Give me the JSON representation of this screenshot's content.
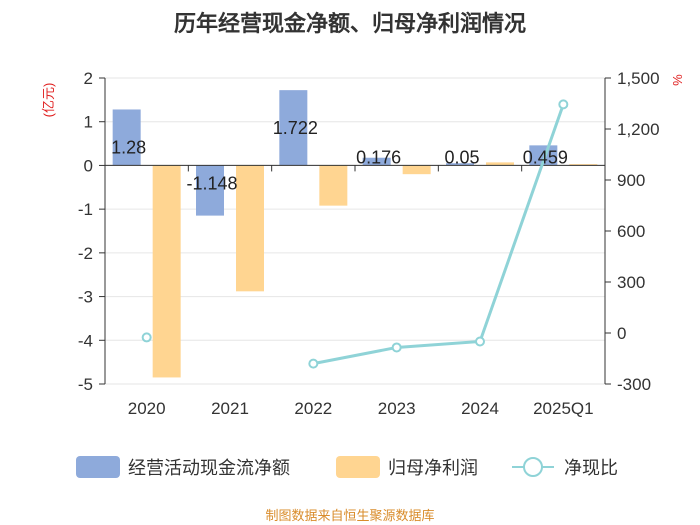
{
  "title": "历年经营现金净额、归母净利润情况",
  "source": "制图数据来自恒生聚源数据库",
  "colors": {
    "series1": "#8eaadb",
    "series2": "#ffd591",
    "line": "#8fd3d7",
    "axis": "#333333",
    "unit": "#e02020"
  },
  "chart_data": {
    "type": "bar",
    "categories": [
      "2020",
      "2021",
      "2022",
      "2023",
      "2024",
      "2025Q1"
    ],
    "left_axis": {
      "unit": "(亿元)",
      "ylim": [
        -5,
        2
      ],
      "ticks": [
        "2",
        "1",
        "0",
        "-1",
        "-2",
        "-3",
        "-4",
        "-5"
      ]
    },
    "right_axis": {
      "unit": "%",
      "ylim": [
        -300,
        1500
      ],
      "ticks": [
        "1,500",
        "1,200",
        "900",
        "600",
        "300",
        "0",
        "-300"
      ]
    },
    "series": [
      {
        "name": "经营活动现金流净额",
        "type": "bar",
        "axis": "left",
        "values": [
          1.28,
          -1.148,
          1.722,
          0.176,
          0.05,
          0.459
        ],
        "labels": [
          "1.28",
          "-1.148",
          "1.722",
          "0.176",
          "0.05",
          "0.459"
        ]
      },
      {
        "name": "归母净利润",
        "type": "bar",
        "axis": "left",
        "values": [
          -4.85,
          -2.88,
          -0.92,
          -0.2,
          0.07,
          0.03
        ]
      },
      {
        "name": "净现比",
        "type": "line",
        "axis": "right",
        "values": [
          -26,
          null,
          -180,
          -85,
          -50,
          1345
        ]
      }
    ],
    "legend_position": "bottom",
    "grid": true
  }
}
